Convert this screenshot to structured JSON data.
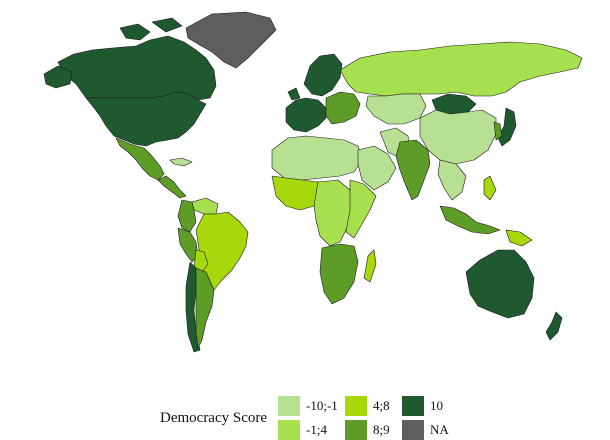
{
  "legend": {
    "title": "Democracy Score",
    "items": [
      {
        "label": "-10;-1",
        "color": "#b7e092"
      },
      {
        "label": "-1;4",
        "color": "#a6e04f"
      },
      {
        "label": "4;8",
        "color": "#a6d80b"
      },
      {
        "label": "8;9",
        "color": "#5c9c27"
      },
      {
        "label": "10",
        "color": "#1f5930"
      },
      {
        "label": "NA",
        "color": "#5e5e5e"
      }
    ]
  },
  "regions": [
    {
      "name": "greenland",
      "category": "NA"
    },
    {
      "name": "canada",
      "category": "10"
    },
    {
      "name": "usa",
      "category": "10"
    },
    {
      "name": "mexico",
      "category": "8;9"
    },
    {
      "name": "central-america",
      "category": "8;9"
    },
    {
      "name": "cuba",
      "category": "-10;-1"
    },
    {
      "name": "venezuela",
      "category": "-1;4"
    },
    {
      "name": "colombia",
      "category": "8;9"
    },
    {
      "name": "brazil",
      "category": "4;8"
    },
    {
      "name": "peru",
      "category": "8;9"
    },
    {
      "name": "bolivia",
      "category": "4;8"
    },
    {
      "name": "chile",
      "category": "10"
    },
    {
      "name": "argentina",
      "category": "8;9"
    },
    {
      "name": "russia",
      "category": "-1;4"
    },
    {
      "name": "scandinavia",
      "category": "10"
    },
    {
      "name": "western-europe",
      "category": "10"
    },
    {
      "name": "eastern-europe",
      "category": "8;9"
    },
    {
      "name": "north-africa",
      "category": "-10;-1"
    },
    {
      "name": "west-africa",
      "category": "4;8"
    },
    {
      "name": "central-africa",
      "category": "-1;4"
    },
    {
      "name": "east-africa",
      "category": "-1;4"
    },
    {
      "name": "southern-africa",
      "category": "8;9"
    },
    {
      "name": "madagascar",
      "category": "4;8"
    },
    {
      "name": "arabian-peninsula",
      "category": "-10;-1"
    },
    {
      "name": "iran",
      "category": "-10;-1"
    },
    {
      "name": "central-asia",
      "category": "-10;-1"
    },
    {
      "name": "mongolia",
      "category": "10"
    },
    {
      "name": "china",
      "category": "-10;-1"
    },
    {
      "name": "india",
      "category": "8;9"
    },
    {
      "name": "southeast-asia",
      "category": "-10;-1"
    },
    {
      "name": "indonesia",
      "category": "8;9"
    },
    {
      "name": "japan",
      "category": "10"
    },
    {
      "name": "korea",
      "category": "8;9"
    },
    {
      "name": "philippines",
      "category": "4;8"
    },
    {
      "name": "australia",
      "category": "10"
    },
    {
      "name": "new-zealand",
      "category": "10"
    },
    {
      "name": "papua-new-guinea",
      "category": "4;8"
    }
  ]
}
